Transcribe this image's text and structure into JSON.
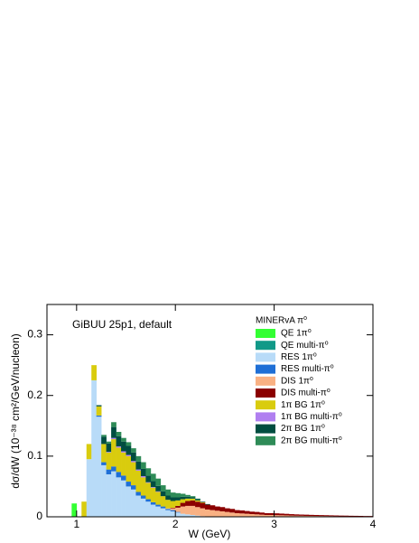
{
  "chart_data": {
    "type": "stacked-histogram",
    "annotation": "GiBUU 25p1, default",
    "legend_title": "MINERvA π⁰",
    "x_label": "W (GeV)",
    "y_label": "dσ/dW (10⁻³⁸ cm²/GeV/nucleon)",
    "xlim": [
      0.7,
      4
    ],
    "ylim": [
      0,
      0.35
    ],
    "xticks": [
      1,
      2,
      3,
      4
    ],
    "yticks": [
      0,
      0.1,
      0.2,
      0.3
    ],
    "bins": [
      0.9,
      0.95,
      1,
      1.05,
      1.1,
      1.15,
      1.2,
      1.25,
      1.3,
      1.35,
      1.4,
      1.45,
      1.5,
      1.55,
      1.6,
      1.65,
      1.7,
      1.75,
      1.8,
      1.85,
      1.9,
      1.95,
      2,
      2.05,
      2.1,
      2.15,
      2.2,
      2.25,
      2.3,
      2.35,
      2.4,
      2.45,
      2.5,
      2.55,
      2.6,
      2.65,
      2.7,
      2.75,
      2.8,
      2.85,
      2.9,
      2.95,
      3,
      3.05,
      3.1,
      3.15,
      3.2,
      3.25,
      3.3,
      3.35,
      3.4,
      3.45,
      3.5,
      3.55,
      3.6,
      3.65,
      3.7,
      3.75,
      3.8,
      3.85,
      3.9,
      3.95,
      4
    ],
    "series": [
      {
        "name": "QE 1π⁰",
        "color": "#33ff33",
        "values": [
          0,
          0.022,
          0,
          0,
          0,
          0,
          0,
          0,
          0,
          0,
          0,
          0,
          0,
          0,
          0,
          0,
          0,
          0,
          0,
          0,
          0,
          0,
          0,
          0,
          0,
          0,
          0,
          0,
          0,
          0,
          0,
          0,
          0,
          0,
          0,
          0,
          0,
          0,
          0,
          0,
          0,
          0,
          0,
          0,
          0,
          0,
          0,
          0,
          0,
          0,
          0,
          0,
          0,
          0,
          0,
          0,
          0,
          0,
          0,
          0,
          0,
          0
        ]
      },
      {
        "name": "QE multi-π⁰",
        "color": "#119988",
        "values": [
          0,
          0,
          0,
          0,
          0,
          0,
          0,
          0,
          0,
          0,
          0,
          0,
          0,
          0,
          0,
          0,
          0,
          0,
          0,
          0,
          0,
          0,
          0,
          0,
          0,
          0,
          0,
          0,
          0,
          0,
          0,
          0,
          0,
          0,
          0,
          0,
          0,
          0,
          0,
          0,
          0,
          0,
          0,
          0,
          0,
          0,
          0,
          0,
          0,
          0,
          0,
          0,
          0,
          0,
          0,
          0,
          0,
          0,
          0,
          0,
          0,
          0
        ]
      },
      {
        "name": "RES 1π⁰",
        "color": "#b8dbf8",
        "values": [
          0,
          0,
          0,
          0,
          0.095,
          0.225,
          0.165,
          0.085,
          0.07,
          0.075,
          0.065,
          0.06,
          0.05,
          0.045,
          0.035,
          0.03,
          0.025,
          0.02,
          0.017,
          0.014,
          0.011,
          0.009,
          0.007,
          0.005,
          0.004,
          0.003,
          0.002,
          0.001,
          0,
          0,
          0,
          0,
          0,
          0,
          0,
          0,
          0,
          0,
          0,
          0,
          0,
          0,
          0,
          0,
          0,
          0,
          0,
          0,
          0,
          0,
          0,
          0,
          0,
          0,
          0,
          0,
          0,
          0,
          0,
          0,
          0,
          0
        ]
      },
      {
        "name": "RES multi-π⁰",
        "color": "#1f6fd6",
        "values": [
          0,
          0,
          0,
          0,
          0,
          0,
          0.002,
          0.005,
          0.008,
          0.008,
          0.009,
          0.008,
          0.008,
          0.007,
          0.006,
          0.005,
          0.004,
          0.004,
          0.003,
          0.003,
          0.002,
          0.002,
          0.001,
          0,
          0,
          0,
          0,
          0,
          0,
          0,
          0,
          0,
          0,
          0,
          0,
          0,
          0,
          0,
          0,
          0,
          0,
          0,
          0,
          0,
          0,
          0,
          0,
          0,
          0,
          0,
          0,
          0,
          0,
          0,
          0,
          0,
          0,
          0,
          0,
          0,
          0,
          0
        ]
      },
      {
        "name": "DIS 1π⁰",
        "color": "#f9b183",
        "values": [
          0,
          0,
          0,
          0,
          0,
          0,
          0,
          0,
          0,
          0,
          0,
          0,
          0,
          0,
          0,
          0,
          0,
          0,
          0,
          0,
          0.001,
          0.003,
          0.007,
          0.012,
          0.014,
          0.015,
          0.014,
          0.013,
          0.012,
          0.011,
          0.01,
          0.009,
          0.008,
          0.007,
          0.006,
          0.0055,
          0.005,
          0.0045,
          0.004,
          0.0035,
          0.003,
          0.003,
          0.0027,
          0.0025,
          0.0023,
          0.002,
          0.0018,
          0.0017,
          0.0015,
          0.0014,
          0.0013,
          0.0012,
          0.0011,
          0.001,
          0.0009,
          0.0008,
          0.0008,
          0.0007,
          0.0006,
          0.0006,
          0.0005,
          0.0005
        ]
      },
      {
        "name": "DIS multi-π⁰",
        "color": "#8b0000",
        "values": [
          0,
          0,
          0,
          0,
          0,
          0,
          0,
          0,
          0,
          0,
          0,
          0,
          0,
          0,
          0,
          0,
          0,
          0,
          0,
          0,
          0,
          0.001,
          0.003,
          0.006,
          0.008,
          0.009,
          0.009,
          0.009,
          0.008,
          0.008,
          0.007,
          0.007,
          0.006,
          0.006,
          0.005,
          0.005,
          0.0045,
          0.004,
          0.004,
          0.0035,
          0.003,
          0.003,
          0.003,
          0.0028,
          0.0026,
          0.0024,
          0.0022,
          0.002,
          0.002,
          0.0018,
          0.0017,
          0.0016,
          0.0015,
          0.0014,
          0.0013,
          0.0012,
          0.0011,
          0.001,
          0.001,
          0.0009,
          0.0008,
          0.0008
        ]
      },
      {
        "name": "1π BG 1π⁰",
        "color": "#d9cc0e",
        "values": [
          0,
          0,
          0,
          0.025,
          0.025,
          0.025,
          0.015,
          0.03,
          0.028,
          0.045,
          0.04,
          0.038,
          0.042,
          0.038,
          0.035,
          0.03,
          0.027,
          0.024,
          0.021,
          0.017,
          0.014,
          0.011,
          0.009,
          0.006,
          0.004,
          0.003,
          0.002,
          0.001,
          0,
          0,
          0,
          0,
          0,
          0,
          0,
          0,
          0,
          0,
          0,
          0,
          0,
          0,
          0,
          0,
          0,
          0,
          0,
          0,
          0,
          0,
          0,
          0,
          0,
          0,
          0,
          0,
          0,
          0,
          0,
          0,
          0,
          0
        ]
      },
      {
        "name": "1π BG multi-π⁰",
        "color": "#b07ff0",
        "values": [
          0,
          0,
          0,
          0,
          0,
          0,
          0,
          0,
          0.001,
          0.002,
          0.002,
          0.002,
          0.002,
          0.002,
          0.002,
          0.002,
          0.001,
          0.001,
          0.001,
          0,
          0,
          0,
          0,
          0,
          0,
          0,
          0,
          0,
          0,
          0,
          0,
          0,
          0,
          0,
          0,
          0,
          0,
          0,
          0,
          0,
          0,
          0,
          0,
          0,
          0,
          0,
          0,
          0,
          0,
          0,
          0,
          0,
          0,
          0,
          0,
          0,
          0,
          0,
          0,
          0,
          0,
          0
        ]
      },
      {
        "name": "2π BG 1π⁰",
        "color": "#004d40",
        "values": [
          0,
          0,
          0,
          0,
          0,
          0,
          0.002,
          0.012,
          0.014,
          0.018,
          0.017,
          0.016,
          0.015,
          0.014,
          0.013,
          0.012,
          0.011,
          0.01,
          0.009,
          0.008,
          0.007,
          0.006,
          0.005,
          0.004,
          0.003,
          0.002,
          0.002,
          0.001,
          0.001,
          0,
          0,
          0,
          0,
          0,
          0,
          0,
          0,
          0,
          0,
          0,
          0,
          0,
          0,
          0,
          0,
          0,
          0,
          0,
          0,
          0,
          0,
          0,
          0,
          0,
          0,
          0,
          0,
          0,
          0,
          0,
          0,
          0
        ]
      },
      {
        "name": "2π BG multi-π⁰",
        "color": "#2e8b57",
        "values": [
          0,
          0,
          0,
          0,
          0,
          0,
          0,
          0.003,
          0.003,
          0.008,
          0.007,
          0.006,
          0.006,
          0.007,
          0.009,
          0.011,
          0.012,
          0.012,
          0.012,
          0.01,
          0.01,
          0.008,
          0.007,
          0.005,
          0.003,
          0.002,
          0.001,
          0,
          0,
          0,
          0,
          0,
          0,
          0,
          0,
          0,
          0,
          0,
          0,
          0,
          0,
          0,
          0,
          0,
          0,
          0,
          0,
          0,
          0,
          0,
          0,
          0,
          0,
          0,
          0,
          0,
          0,
          0,
          0,
          0,
          0,
          0
        ]
      }
    ]
  }
}
